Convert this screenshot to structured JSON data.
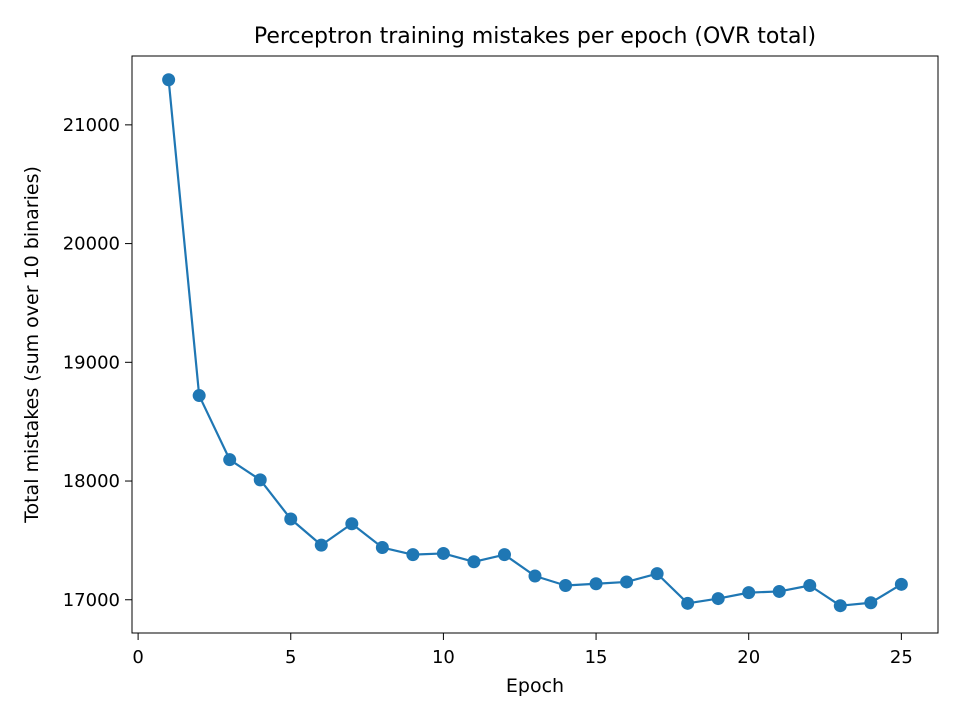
{
  "chart_data": {
    "type": "line",
    "title": "Perceptron training mistakes per epoch (OVR total)",
    "xlabel": "Epoch",
    "ylabel": "Total mistakes (sum over 10 binaries)",
    "xlim": [
      -0.2,
      26.2
    ],
    "ylim": [
      16720,
      21580
    ],
    "xticks": [
      0,
      5,
      10,
      15,
      20,
      25
    ],
    "yticks": [
      17000,
      18000,
      19000,
      20000,
      21000
    ],
    "grid": false,
    "legend": "none",
    "colors": {
      "series": "#1f77b4",
      "axes": "#000000",
      "background": "#ffffff"
    },
    "series": [
      {
        "x": [
          1,
          2,
          3,
          4,
          5,
          6,
          7,
          8,
          9,
          10,
          11,
          12,
          13,
          14,
          15,
          16,
          17,
          18,
          19,
          20,
          21,
          22,
          23,
          24,
          25
        ],
        "y": [
          21380,
          18720,
          18180,
          18010,
          17680,
          17460,
          17640,
          17440,
          17380,
          17390,
          17320,
          17380,
          17200,
          17120,
          17135,
          17150,
          17220,
          16970,
          17010,
          17060,
          17070,
          17120,
          16950,
          16975,
          17130
        ]
      }
    ]
  }
}
